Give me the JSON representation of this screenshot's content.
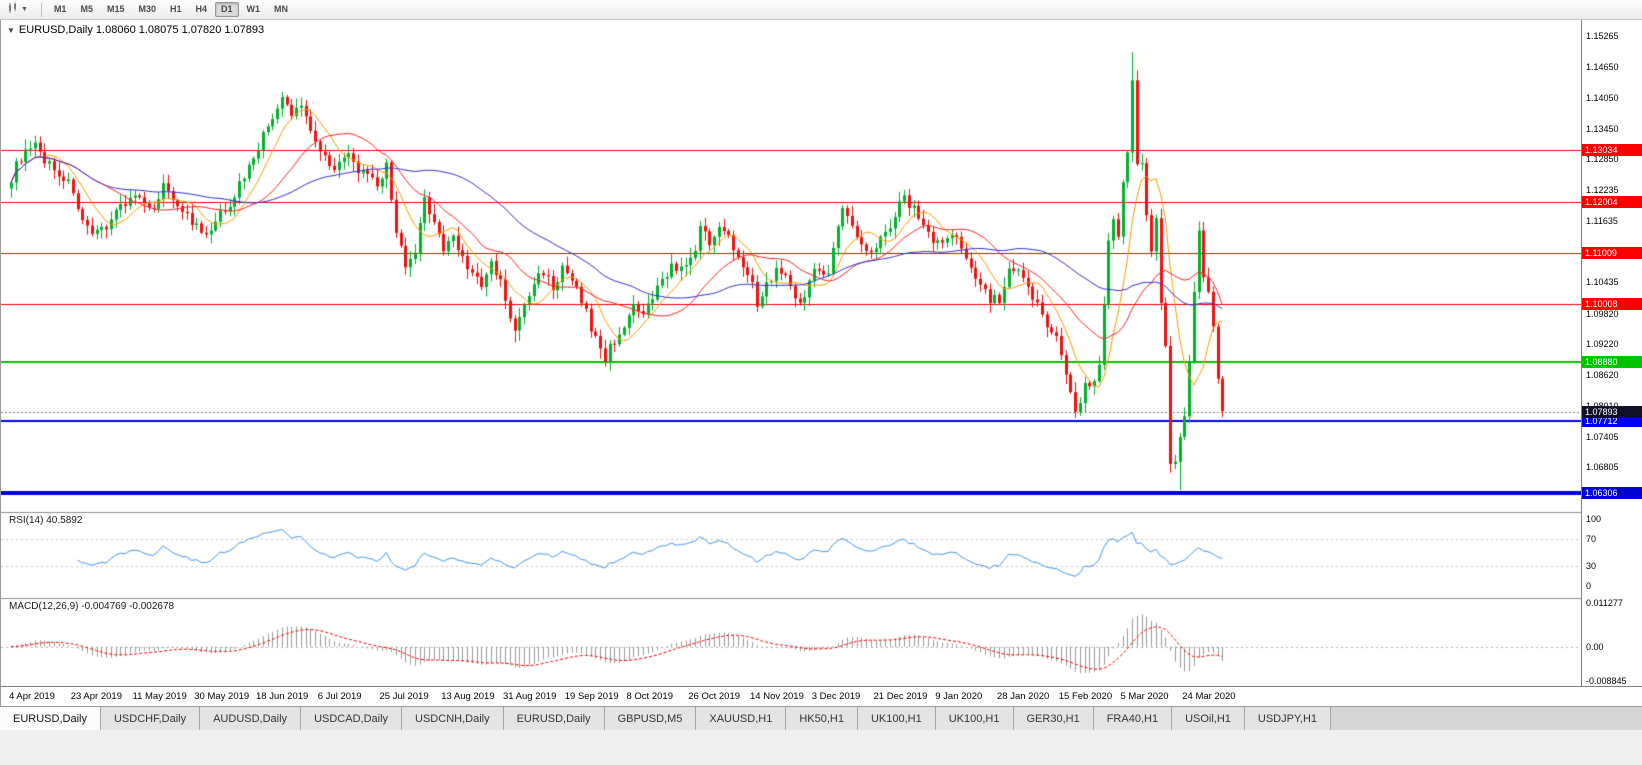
{
  "toolbar": {
    "chart_type_icon": "candlestick-chart-dropdown",
    "timeframes": [
      {
        "label": "M1",
        "active": false
      },
      {
        "label": "M5",
        "active": false
      },
      {
        "label": "M15",
        "active": false
      },
      {
        "label": "M30",
        "active": false
      },
      {
        "label": "H1",
        "active": false
      },
      {
        "label": "H4",
        "active": false
      },
      {
        "label": "D1",
        "active": true
      },
      {
        "label": "W1",
        "active": false
      },
      {
        "label": "MN",
        "active": false
      }
    ]
  },
  "chart": {
    "header": "EURUSD,Daily 1.08060 1.08075 1.07820 1.07893",
    "symbol": "EURUSD",
    "timeframe": "Daily"
  },
  "indicators": {
    "rsi": {
      "label": "RSI(14) 40.5892",
      "value": 40.5892,
      "ticks": [
        100,
        70,
        30,
        0
      ],
      "levels": [
        70,
        30
      ],
      "color": "#4896EC"
    },
    "macd": {
      "label": "MACD(12,26,9) -0.004769 -0.002678",
      "macd_value": -0.004769,
      "signal_value": -0.002678,
      "ticks": [
        "0.011277",
        "0.00",
        "-0.008845"
      ],
      "scale": {
        "max": 0.011277,
        "min": -0.008845
      },
      "hist_color": "#9a9a9a",
      "signal_color": "#FF0000"
    }
  },
  "chart_data": {
    "type": "candlestick",
    "symbol": "EURUSD",
    "period": "Daily",
    "ohlc_display": {
      "open": "1.08060",
      "high": "1.08075",
      "low": "1.07820",
      "close": "1.07893"
    },
    "bar_count": 256,
    "label_step": 13,
    "y_range": {
      "max": 1.155,
      "min": 1.0593
    },
    "y_ticks": [
      "1.15265",
      "1.14650",
      "1.14050",
      "1.13450",
      "1.12850",
      "1.12235",
      "1.11635",
      "1.10435",
      "1.09820",
      "1.09220",
      "1.08620",
      "1.08010",
      "1.07405",
      "1.06805"
    ],
    "x_labels": [
      "4 Apr 2019",
      "23 Apr 2019",
      "11 May 2019",
      "30 May 2019",
      "18 Jun 2019",
      "6 Jul 2019",
      "25 Jul 2019",
      "13 Aug 2019",
      "31 Aug 2019",
      "19 Sep 2019",
      "8 Oct 2019",
      "26 Oct 2019",
      "14 Nov 2019",
      "3 Dec 2019",
      "21 Dec 2019",
      "9 Jan 2020",
      "28 Jan 2020",
      "15 Feb 2020",
      "5 Mar 2020",
      "24 Mar 2020"
    ],
    "current_price": {
      "value": 1.07893,
      "label": "1.07893",
      "color": "#101028"
    },
    "hlines": [
      {
        "price": 1.13034,
        "label": "1.13034",
        "color": "#FF0000",
        "width": 1
      },
      {
        "price": 1.12004,
        "label": "1.12004",
        "color": "#FF0000",
        "width": 1
      },
      {
        "price": 1.11009,
        "label": "1.11009",
        "color": "#FF0000",
        "width": 1
      },
      {
        "price": 1.10008,
        "label": "1.10008",
        "color": "#FF0000",
        "width": 1
      },
      {
        "price": 1.0888,
        "label": "1.08880",
        "color": "#00C400",
        "width": 2
      },
      {
        "price": 1.07712,
        "label": "1.07712",
        "color": "#0000F0",
        "width": 2
      },
      {
        "price": 1.06306,
        "label": "1.06306",
        "color": "#0000D0",
        "width": 4
      }
    ],
    "price_path": [
      [
        0,
        1.125
      ],
      [
        2,
        1.129
      ],
      [
        5,
        1.1307
      ],
      [
        8,
        1.1275
      ],
      [
        11,
        1.1248
      ],
      [
        13,
        1.1225
      ],
      [
        15,
        1.116
      ],
      [
        17,
        1.1128
      ],
      [
        20,
        1.1158
      ],
      [
        23,
        1.1195
      ],
      [
        26,
        1.1215
      ],
      [
        29,
        1.118
      ],
      [
        32,
        1.1232
      ],
      [
        35,
        1.12
      ],
      [
        38,
        1.116
      ],
      [
        41,
        1.113
      ],
      [
        44,
        1.1175
      ],
      [
        47,
        1.1215
      ],
      [
        50,
        1.1272
      ],
      [
        53,
        1.133
      ],
      [
        55,
        1.1368
      ],
      [
        57,
        1.14
      ],
      [
        59,
        1.1372
      ],
      [
        61,
        1.1392
      ],
      [
        63,
        1.1348
      ],
      [
        65,
        1.13
      ],
      [
        68,
        1.1272
      ],
      [
        71,
        1.1288
      ],
      [
        74,
        1.1255
      ],
      [
        77,
        1.1232
      ],
      [
        79,
        1.127
      ],
      [
        81,
        1.115
      ],
      [
        83,
        1.1065
      ],
      [
        85,
        1.11
      ],
      [
        87,
        1.1202
      ],
      [
        89,
        1.1168
      ],
      [
        91,
        1.1105
      ],
      [
        93,
        1.1135
      ],
      [
        95,
        1.1092
      ],
      [
        97,
        1.1062
      ],
      [
        99,
        1.1032
      ],
      [
        101,
        1.108
      ],
      [
        103,
        1.1042
      ],
      [
        106,
        1.0942
      ],
      [
        108,
        1.1
      ],
      [
        110,
        1.104
      ],
      [
        112,
        1.1068
      ],
      [
        114,
        1.1032
      ],
      [
        116,
        1.1068
      ],
      [
        118,
        1.1042
      ],
      [
        120,
        1.1012
      ],
      [
        122,
        1.0952
      ],
      [
        125,
        1.0897
      ],
      [
        127,
        1.093
      ],
      [
        129,
        1.0962
      ],
      [
        131,
        1.099
      ],
      [
        133,
        1.0976
      ],
      [
        135,
        1.101
      ],
      [
        137,
        1.1048
      ],
      [
        139,
        1.1078
      ],
      [
        141,
        1.1066
      ],
      [
        143,
        1.1082
      ],
      [
        145,
        1.1148
      ],
      [
        147,
        1.1122
      ],
      [
        149,
        1.1158
      ],
      [
        151,
        1.113
      ],
      [
        153,
        1.1098
      ],
      [
        155,
        1.1068
      ],
      [
        157,
        1.1002
      ],
      [
        159,
        1.1038
      ],
      [
        161,
        1.1072
      ],
      [
        163,
        1.1052
      ],
      [
        165,
        1.1022
      ],
      [
        167,
        1.1006
      ],
      [
        169,
        1.1078
      ],
      [
        172,
        1.1062
      ],
      [
        175,
        1.1192
      ],
      [
        177,
        1.1148
      ],
      [
        179,
        1.1118
      ],
      [
        181,
        1.1112
      ],
      [
        183,
        1.1128
      ],
      [
        185,
        1.1158
      ],
      [
        188,
        1.1212
      ],
      [
        190,
        1.1188
      ],
      [
        192,
        1.1158
      ],
      [
        194,
        1.1128
      ],
      [
        196,
        1.1118
      ],
      [
        198,
        1.1138
      ],
      [
        200,
        1.1108
      ],
      [
        202,
        1.1082
      ],
      [
        204,
        1.104
      ],
      [
        206,
        1.1012
      ],
      [
        208,
        1.1008
      ],
      [
        210,
        1.1062
      ],
      [
        212,
        1.1058
      ],
      [
        214,
        1.103
      ],
      [
        216,
        1.1
      ],
      [
        218,
        1.0966
      ],
      [
        220,
        1.0932
      ],
      [
        222,
        1.0866
      ],
      [
        224,
        1.0792
      ],
      [
        226,
        1.0842
      ],
      [
        228,
        1.0856
      ],
      [
        229,
        1.0882
      ],
      [
        230,
        1.1
      ],
      [
        231,
        1.1135
      ],
      [
        232,
        1.1172
      ],
      [
        233,
        1.1135
      ],
      [
        234,
        1.124
      ],
      [
        235,
        1.129
      ],
      [
        236,
        1.1448
      ],
      [
        237,
        1.1282
      ],
      [
        238,
        1.127
      ],
      [
        239,
        1.1186
      ],
      [
        240,
        1.1106
      ],
      [
        241,
        1.118
      ],
      [
        242,
        1.0996
      ],
      [
        243,
        1.0916
      ],
      [
        244,
        1.0692
      ],
      [
        245,
        1.0696
      ],
      [
        246,
        1.0732
      ],
      [
        247,
        1.079
      ],
      [
        248,
        1.0882
      ],
      [
        249,
        1.103
      ],
      [
        250,
        1.1138
      ],
      [
        251,
        1.105
      ],
      [
        252,
        1.103
      ],
      [
        253,
        1.0962
      ],
      [
        254,
        1.0856
      ],
      [
        255,
        1.079
      ]
    ],
    "spikes": [
      {
        "i": 57,
        "high": 1.1412
      },
      {
        "i": 106,
        "low": 1.0926
      },
      {
        "i": 125,
        "low": 1.0879
      },
      {
        "i": 224,
        "low": 1.0778
      },
      {
        "i": 236,
        "high": 1.1495
      },
      {
        "i": 244,
        "low": 1.067
      },
      {
        "i": 246,
        "low": 1.0636
      }
    ],
    "moving_averages": [
      {
        "name": "ma-fast",
        "period": 8,
        "color": "#FF9900"
      },
      {
        "name": "ma-mid",
        "period": 20,
        "color": "#FF2222"
      },
      {
        "name": "ma-slow",
        "period": 45,
        "color": "#3333CC"
      }
    ],
    "colors": {
      "bull": "#00B22C",
      "bear": "#EE1111",
      "grid_sep": "#909090",
      "current_line": "#888888"
    }
  },
  "tabs": [
    {
      "label": "EURUSD,Daily",
      "active": true
    },
    {
      "label": "USDCHF,Daily",
      "active": false
    },
    {
      "label": "AUDUSD,Daily",
      "active": false
    },
    {
      "label": "USDCAD,Daily",
      "active": false
    },
    {
      "label": "USDCNH,Daily",
      "active": false
    },
    {
      "label": "EURUSD,Daily",
      "active": false
    },
    {
      "label": "GBPUSD,M5",
      "active": false
    },
    {
      "label": "XAUUSD,H1",
      "active": false
    },
    {
      "label": "HK50,H1",
      "active": false
    },
    {
      "label": "UK100,H1",
      "active": false
    },
    {
      "label": "UK100,H1",
      "active": false
    },
    {
      "label": "GER30,H1",
      "active": false
    },
    {
      "label": "FRA40,H1",
      "active": false
    },
    {
      "label": "USOil,H1",
      "active": false
    },
    {
      "label": "USDJPY,H1",
      "active": false
    }
  ]
}
